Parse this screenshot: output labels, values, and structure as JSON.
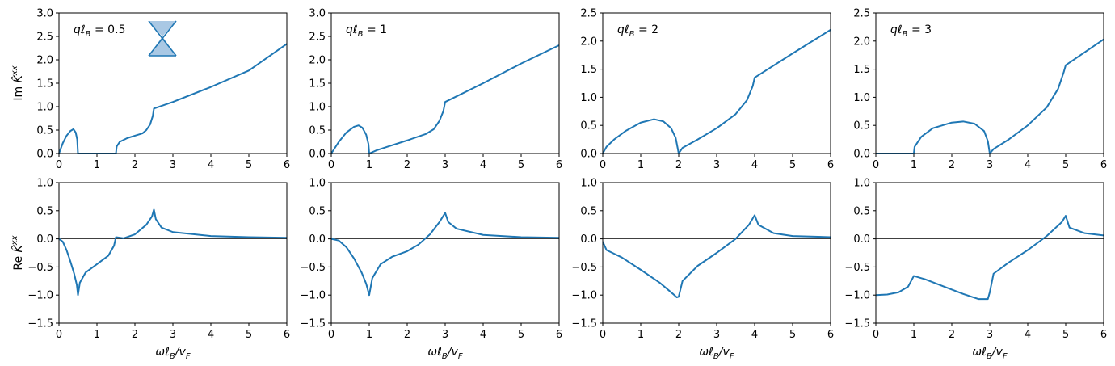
{
  "colors": {
    "line": "#1f77b4",
    "inset_fill": "#a9c8e4",
    "zero_line": "#000000"
  },
  "chart_data": [
    {
      "type": "line",
      "row": "top",
      "annotation": "qℓ_B = 0.5",
      "ylabel": "Im K̂^xx",
      "xlabel": "",
      "xlim": [
        0,
        6
      ],
      "ylim": [
        0,
        3
      ],
      "xticks": [
        "0",
        "1",
        "2",
        "3",
        "4",
        "5",
        "6"
      ],
      "yticks": [
        "0.0",
        "0.5",
        "1.0",
        "1.5",
        "2.0",
        "2.5",
        "3.0"
      ],
      "inset_icon": "dirac-cone-icon",
      "series": [
        {
          "points": [
            [
              0,
              0
            ],
            [
              0.1,
              0.22
            ],
            [
              0.2,
              0.38
            ],
            [
              0.3,
              0.48
            ],
            [
              0.38,
              0.52
            ],
            [
              0.44,
              0.45
            ],
            [
              0.48,
              0.3
            ],
            [
              0.5,
              0
            ],
            [
              1.5,
              0
            ],
            [
              1.52,
              0.15
            ],
            [
              1.6,
              0.25
            ],
            [
              1.8,
              0.33
            ],
            [
              2.0,
              0.38
            ],
            [
              2.2,
              0.43
            ],
            [
              2.3,
              0.5
            ],
            [
              2.4,
              0.62
            ],
            [
              2.47,
              0.8
            ],
            [
              2.5,
              0.96
            ],
            [
              3.0,
              1.1
            ],
            [
              4.0,
              1.42
            ],
            [
              5.0,
              1.77
            ],
            [
              6.0,
              2.34
            ]
          ]
        }
      ]
    },
    {
      "type": "line",
      "row": "top",
      "annotation": "qℓ_B = 1",
      "ylabel": "",
      "xlabel": "",
      "xlim": [
        0,
        6
      ],
      "ylim": [
        0,
        3
      ],
      "xticks": [
        "0",
        "1",
        "2",
        "3",
        "4",
        "5",
        "6"
      ],
      "yticks": [
        "0.0",
        "0.5",
        "1.0",
        "1.5",
        "2.0",
        "2.5",
        "3.0"
      ],
      "series": [
        {
          "points": [
            [
              0,
              0
            ],
            [
              0.2,
              0.25
            ],
            [
              0.4,
              0.45
            ],
            [
              0.6,
              0.57
            ],
            [
              0.72,
              0.6
            ],
            [
              0.82,
              0.55
            ],
            [
              0.92,
              0.4
            ],
            [
              0.98,
              0.2
            ],
            [
              1.0,
              0
            ],
            [
              1.2,
              0.07
            ],
            [
              1.5,
              0.15
            ],
            [
              2.0,
              0.28
            ],
            [
              2.5,
              0.42
            ],
            [
              2.7,
              0.52
            ],
            [
              2.85,
              0.7
            ],
            [
              2.95,
              0.9
            ],
            [
              3.0,
              1.1
            ],
            [
              4.0,
              1.5
            ],
            [
              5.0,
              1.92
            ],
            [
              6.0,
              2.31
            ]
          ]
        }
      ]
    },
    {
      "type": "line",
      "row": "top",
      "annotation": "qℓ_B = 2",
      "ylabel": "",
      "xlabel": "",
      "xlim": [
        0,
        6
      ],
      "ylim": [
        0,
        2.5
      ],
      "xticks": [
        "0",
        "1",
        "2",
        "3",
        "4",
        "5",
        "6"
      ],
      "yticks": [
        "0.0",
        "0.5",
        "1.0",
        "1.5",
        "2.0",
        "2.5"
      ],
      "series": [
        {
          "points": [
            [
              0,
              0
            ],
            [
              0.1,
              0.12
            ],
            [
              0.3,
              0.25
            ],
            [
              0.6,
              0.4
            ],
            [
              1.0,
              0.55
            ],
            [
              1.35,
              0.61
            ],
            [
              1.6,
              0.57
            ],
            [
              1.8,
              0.45
            ],
            [
              1.92,
              0.28
            ],
            [
              2.0,
              0
            ],
            [
              2.1,
              0.1
            ],
            [
              2.5,
              0.25
            ],
            [
              3.0,
              0.45
            ],
            [
              3.5,
              0.7
            ],
            [
              3.8,
              0.95
            ],
            [
              3.95,
              1.2
            ],
            [
              4.0,
              1.35
            ],
            [
              5.0,
              1.78
            ],
            [
              6.0,
              2.2
            ]
          ]
        }
      ]
    },
    {
      "type": "line",
      "row": "top",
      "annotation": "qℓ_B = 3",
      "ylabel": "",
      "xlabel": "",
      "xlim": [
        0,
        6
      ],
      "ylim": [
        0,
        2.5
      ],
      "xticks": [
        "0",
        "1",
        "2",
        "3",
        "4",
        "5",
        "6"
      ],
      "yticks": [
        "0.0",
        "0.5",
        "1.0",
        "1.5",
        "2.0",
        "2.5"
      ],
      "series": [
        {
          "points": [
            [
              0,
              0
            ],
            [
              1.0,
              0
            ],
            [
              1.02,
              0.12
            ],
            [
              1.2,
              0.3
            ],
            [
              1.5,
              0.45
            ],
            [
              2.0,
              0.55
            ],
            [
              2.3,
              0.57
            ],
            [
              2.6,
              0.53
            ],
            [
              2.85,
              0.4
            ],
            [
              2.95,
              0.22
            ],
            [
              3.0,
              0
            ],
            [
              3.1,
              0.08
            ],
            [
              3.5,
              0.25
            ],
            [
              4.0,
              0.5
            ],
            [
              4.5,
              0.82
            ],
            [
              4.8,
              1.15
            ],
            [
              4.95,
              1.45
            ],
            [
              5.0,
              1.57
            ],
            [
              5.5,
              1.8
            ],
            [
              6.0,
              2.03
            ]
          ]
        }
      ]
    },
    {
      "type": "line",
      "row": "bottom",
      "ylabel": "Re K̂^xx",
      "xlabel": "ωℓ_B/v_F",
      "xlim": [
        0,
        6
      ],
      "ylim": [
        -1.5,
        1
      ],
      "xticks": [
        "0",
        "1",
        "2",
        "3",
        "4",
        "5",
        "6"
      ],
      "yticks": [
        "−1.5",
        "−1.0",
        "−0.5",
        "0.0",
        "0.5",
        "1.0"
      ],
      "series": [
        {
          "points": [
            [
              0,
              0
            ],
            [
              0.1,
              -0.05
            ],
            [
              0.2,
              -0.2
            ],
            [
              0.3,
              -0.4
            ],
            [
              0.4,
              -0.62
            ],
            [
              0.47,
              -0.82
            ],
            [
              0.5,
              -1.0
            ],
            [
              0.55,
              -0.78
            ],
            [
              0.7,
              -0.6
            ],
            [
              1.0,
              -0.45
            ],
            [
              1.3,
              -0.3
            ],
            [
              1.45,
              -0.12
            ],
            [
              1.5,
              0.03
            ],
            [
              1.7,
              0.01
            ],
            [
              2.0,
              0.08
            ],
            [
              2.3,
              0.25
            ],
            [
              2.45,
              0.4
            ],
            [
              2.5,
              0.52
            ],
            [
              2.55,
              0.35
            ],
            [
              2.7,
              0.2
            ],
            [
              3.0,
              0.12
            ],
            [
              4.0,
              0.05
            ],
            [
              5.0,
              0.03
            ],
            [
              6.0,
              0.02
            ]
          ]
        }
      ]
    },
    {
      "type": "line",
      "row": "bottom",
      "ylabel": "",
      "xlabel": "ωℓ_B/v_F",
      "xlim": [
        0,
        6
      ],
      "ylim": [
        -1.5,
        1
      ],
      "xticks": [
        "0",
        "1",
        "2",
        "3",
        "4",
        "5",
        "6"
      ],
      "yticks": [
        "−1.5",
        "−1.0",
        "−0.5",
        "0.0",
        "0.5",
        "1.0"
      ],
      "series": [
        {
          "points": [
            [
              0,
              0
            ],
            [
              0.2,
              -0.03
            ],
            [
              0.4,
              -0.15
            ],
            [
              0.6,
              -0.35
            ],
            [
              0.8,
              -0.6
            ],
            [
              0.92,
              -0.8
            ],
            [
              1.0,
              -1.0
            ],
            [
              1.08,
              -0.7
            ],
            [
              1.3,
              -0.45
            ],
            [
              1.6,
              -0.32
            ],
            [
              2.0,
              -0.22
            ],
            [
              2.3,
              -0.1
            ],
            [
              2.6,
              0.08
            ],
            [
              2.85,
              0.3
            ],
            [
              3.0,
              0.46
            ],
            [
              3.08,
              0.3
            ],
            [
              3.3,
              0.18
            ],
            [
              4.0,
              0.07
            ],
            [
              5.0,
              0.03
            ],
            [
              6.0,
              0.02
            ]
          ]
        }
      ]
    },
    {
      "type": "line",
      "row": "bottom",
      "ylabel": "",
      "xlabel": "ωℓ_B/v_F",
      "xlim": [
        0,
        6
      ],
      "ylim": [
        -1.5,
        1
      ],
      "xticks": [
        "0",
        "1",
        "2",
        "3",
        "4",
        "5",
        "6"
      ],
      "yticks": [
        "−1.5",
        "−1.0",
        "−0.5",
        "0.0",
        "0.5",
        "1.0"
      ],
      "series": [
        {
          "points": [
            [
              0,
              -0.05
            ],
            [
              0.1,
              -0.2
            ],
            [
              0.5,
              -0.33
            ],
            [
              1.0,
              -0.55
            ],
            [
              1.5,
              -0.78
            ],
            [
              1.85,
              -0.98
            ],
            [
              1.95,
              -1.04
            ],
            [
              2.0,
              -1.03
            ],
            [
              2.1,
              -0.75
            ],
            [
              2.5,
              -0.48
            ],
            [
              3.0,
              -0.25
            ],
            [
              3.5,
              0.0
            ],
            [
              3.85,
              0.25
            ],
            [
              4.0,
              0.42
            ],
            [
              4.1,
              0.25
            ],
            [
              4.5,
              0.1
            ],
            [
              5.0,
              0.05
            ],
            [
              6.0,
              0.03
            ]
          ]
        }
      ]
    },
    {
      "type": "line",
      "row": "bottom",
      "ylabel": "",
      "xlabel": "ωℓ_B/v_F",
      "xlim": [
        0,
        6
      ],
      "ylim": [
        -1.5,
        1
      ],
      "xticks": [
        "0",
        "1",
        "2",
        "3",
        "4",
        "5",
        "6"
      ],
      "yticks": [
        "−1.5",
        "−1.0",
        "−0.5",
        "0.0",
        "0.5",
        "1.0"
      ],
      "series": [
        {
          "points": [
            [
              0,
              -1.0
            ],
            [
              0.3,
              -0.99
            ],
            [
              0.6,
              -0.95
            ],
            [
              0.85,
              -0.85
            ],
            [
              1.0,
              -0.66
            ],
            [
              1.3,
              -0.72
            ],
            [
              1.8,
              -0.85
            ],
            [
              2.3,
              -0.98
            ],
            [
              2.7,
              -1.07
            ],
            [
              2.95,
              -1.07
            ],
            [
              3.0,
              -0.95
            ],
            [
              3.1,
              -0.62
            ],
            [
              3.5,
              -0.42
            ],
            [
              4.0,
              -0.2
            ],
            [
              4.5,
              0.05
            ],
            [
              4.9,
              0.3
            ],
            [
              5.0,
              0.41
            ],
            [
              5.1,
              0.2
            ],
            [
              5.5,
              0.1
            ],
            [
              6.0,
              0.06
            ]
          ]
        }
      ]
    }
  ]
}
